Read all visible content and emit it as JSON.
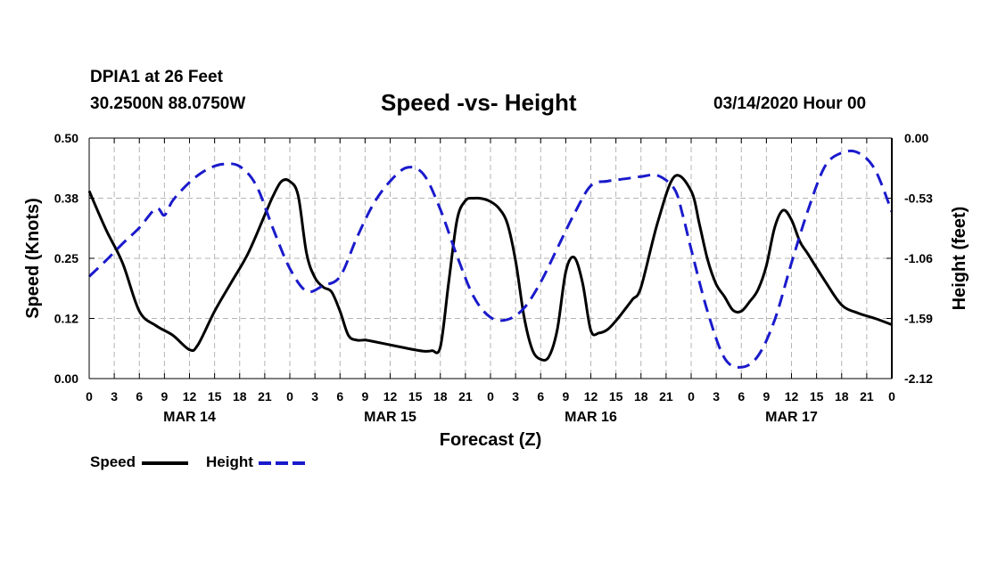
{
  "header": {
    "station": "DPIA1 at 26 Feet",
    "coords": "30.2500N 88.0750W",
    "title": "Speed -vs- Height",
    "run_time": "03/14/2020 Hour 00"
  },
  "legend": {
    "speed_label": "Speed",
    "height_label": "Height"
  },
  "colors": {
    "speed": "#000000",
    "height": "#1a1acc",
    "grid": "#b4b4b4"
  },
  "chart_data": {
    "type": "line",
    "title": "Speed -vs- Height",
    "xlabel": "Forecast (Z)",
    "ylabel_left": "Speed (Knots)",
    "ylabel_right": "Height (feet)",
    "x_range_hours": [
      0,
      96
    ],
    "x_tick_step_hours": 3,
    "x_tick_labels": [
      "0",
      "3",
      "6",
      "9",
      "12",
      "15",
      "18",
      "21",
      "0",
      "3",
      "6",
      "9",
      "12",
      "15",
      "18",
      "21",
      "0",
      "3",
      "6",
      "9",
      "12",
      "15",
      "18",
      "21",
      "0",
      "3",
      "6",
      "9",
      "12",
      "15",
      "18",
      "21",
      "0"
    ],
    "x_day_labels": [
      {
        "label": "MAR 14",
        "hour": 12
      },
      {
        "label": "MAR 15",
        "hour": 36
      },
      {
        "label": "MAR 16",
        "hour": 60
      },
      {
        "label": "MAR 17",
        "hour": 84
      }
    ],
    "ylim_left": [
      0,
      0.5
    ],
    "y_ticks_left": [
      "0.00",
      "0.12",
      "0.25",
      "0.38",
      "0.50"
    ],
    "ylim_right": [
      -2.12,
      0
    ],
    "y_ticks_right": [
      "-2.12",
      "-1.59",
      "-1.06",
      "-0.53",
      "0.00"
    ],
    "grid": true,
    "legend_position": "bottom-left",
    "series": [
      {
        "name": "Speed",
        "axis": "left",
        "style": "solid",
        "x": [
          0,
          2,
          4,
          6,
          8,
          10,
          12,
          13,
          15,
          17,
          19,
          21,
          22,
          23,
          24,
          25,
          26,
          27,
          28,
          29,
          30,
          31,
          32,
          33,
          34,
          36,
          38,
          40,
          41,
          42,
          43,
          44,
          45,
          46,
          47,
          48,
          49,
          50,
          51,
          52,
          53,
          54,
          55,
          56,
          57,
          58,
          59,
          60,
          61,
          62,
          63,
          64,
          65,
          66,
          68,
          70,
          72,
          73,
          74,
          75,
          76,
          77,
          78,
          79,
          80,
          81,
          82,
          83,
          84,
          85,
          86,
          88,
          90,
          92,
          94,
          96
        ],
        "values": [
          0.39,
          0.31,
          0.24,
          0.14,
          0.11,
          0.09,
          0.06,
          0.07,
          0.14,
          0.2,
          0.26,
          0.34,
          0.38,
          0.41,
          0.41,
          0.38,
          0.26,
          0.21,
          0.19,
          0.18,
          0.14,
          0.09,
          0.08,
          0.08,
          0.077,
          0.07,
          0.063,
          0.057,
          0.058,
          0.066,
          0.2,
          0.33,
          0.37,
          0.375,
          0.374,
          0.368,
          0.354,
          0.323,
          0.245,
          0.13,
          0.06,
          0.04,
          0.046,
          0.103,
          0.222,
          0.252,
          0.2,
          0.1,
          0.095,
          0.102,
          0.12,
          0.142,
          0.165,
          0.19,
          0.325,
          0.42,
          0.39,
          0.32,
          0.245,
          0.196,
          0.17,
          0.142,
          0.14,
          0.16,
          0.185,
          0.235,
          0.315,
          0.35,
          0.33,
          0.285,
          0.258,
          0.203,
          0.153,
          0.136,
          0.125,
          0.112
        ]
      },
      {
        "name": "Height",
        "axis": "right",
        "style": "dashed",
        "x": [
          0,
          2,
          4,
          6,
          8,
          9,
          10,
          12,
          14,
          16,
          18,
          20,
          22,
          24,
          26,
          28,
          30,
          32,
          34,
          36,
          38,
          40,
          42,
          44,
          46,
          48,
          50,
          52,
          54,
          56,
          58,
          60,
          62,
          64,
          66,
          68,
          70,
          71,
          72,
          74,
          76,
          78,
          80,
          82,
          84,
          86,
          88,
          90,
          92,
          94,
          96
        ],
        "values": [
          -1.22,
          -1.08,
          -0.93,
          -0.79,
          -0.62,
          -0.68,
          -0.55,
          -0.39,
          -0.28,
          -0.23,
          -0.25,
          -0.42,
          -0.8,
          -1.15,
          -1.35,
          -1.3,
          -1.22,
          -0.88,
          -0.58,
          -0.38,
          -0.26,
          -0.32,
          -0.63,
          -1.04,
          -1.4,
          -1.58,
          -1.6,
          -1.5,
          -1.27,
          -0.97,
          -0.67,
          -0.42,
          -0.38,
          -0.36,
          -0.34,
          -0.33,
          -0.45,
          -0.68,
          -0.98,
          -1.54,
          -1.94,
          -2.02,
          -1.92,
          -1.6,
          -1.1,
          -0.63,
          -0.25,
          -0.13,
          -0.13,
          -0.28,
          -0.65
        ]
      }
    ]
  }
}
